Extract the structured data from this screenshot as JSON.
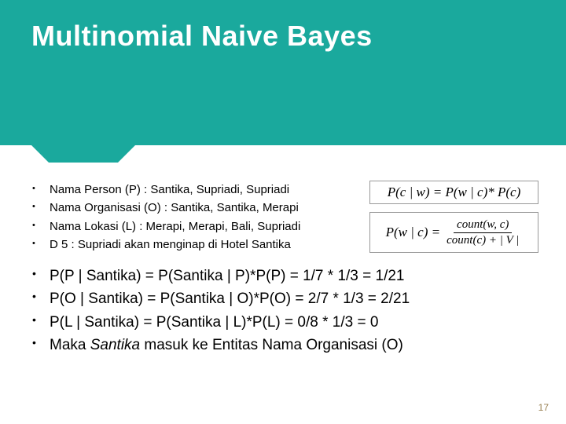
{
  "slide": {
    "title": "Multinomial Naive Bayes",
    "page_number": "17",
    "background_color": "#ffffff",
    "header_color": "#1aa99d",
    "title_color": "#ffffff",
    "text_color": "#000000",
    "small_bullets": [
      "Nama Person (P) : Santika, Supriadi, Supriadi",
      "Nama Organisasi (O) : Santika, Santika, Merapi",
      "Nama Lokasi (L) : Merapi, Merapi, Bali, Supriadi",
      "D 5 : Supriadi akan menginap di Hotel Santika"
    ],
    "big_bullets": [
      "P(P | Santika) = P(Santika | P)*P(P) = 1/7 * 1/3 = 1/21",
      "P(O | Santika) = P(Santika | O)*P(O) = 2/7 * 1/3 = 2/21",
      "P(L | Santika) = P(Santika | L)*P(L) = 0/8  * 1/3 = 0"
    ],
    "conclusion_prefix": "Maka ",
    "conclusion_italic": "Santika",
    "conclusion_suffix": " masuk ke Entitas Nama Organisasi (O)",
    "formula1": "P(c | w) = P(w | c)* P(c)",
    "formula2_lhs": "P(w | c) = ",
    "formula2_num": "count(w, c)",
    "formula2_den": "count(c) + | V |"
  }
}
